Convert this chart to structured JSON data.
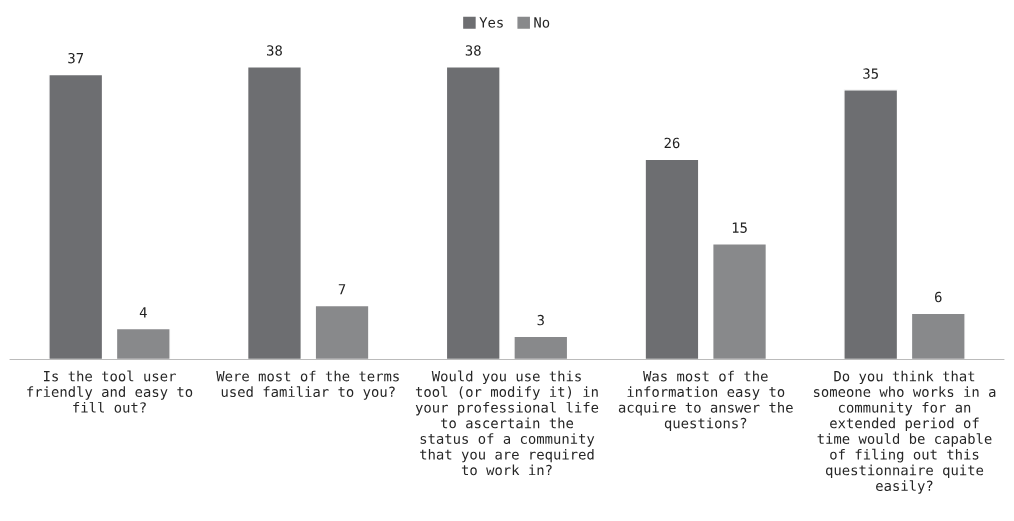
{
  "chart_data": {
    "type": "bar",
    "categories": [
      "Is the tool user\nfriendly and easy to\nfill out?",
      "Were most of the terms\nused familiar to you?",
      "Would you use this\ntool (or modify it) in\nyour professional life\nto ascertain the\nstatus of a community\nthat you are required\nto work in?",
      "Was most of the\ninformation easy to\nacquire to answer the\nquestions?",
      "Do you think that\nsomeone who works in a\ncommunity for an\nextended period of\ntime would be capable\nof filing out this\nquestionnaire quite\neasily?"
    ],
    "series": [
      {
        "name": "Yes",
        "color": "#6d6e71",
        "values": [
          37,
          38,
          38,
          26,
          35
        ]
      },
      {
        "name": "No",
        "color": "#88898b",
        "values": [
          4,
          7,
          3,
          15,
          6
        ]
      }
    ],
    "data_labels": true,
    "legend": "top",
    "grid": false
  }
}
